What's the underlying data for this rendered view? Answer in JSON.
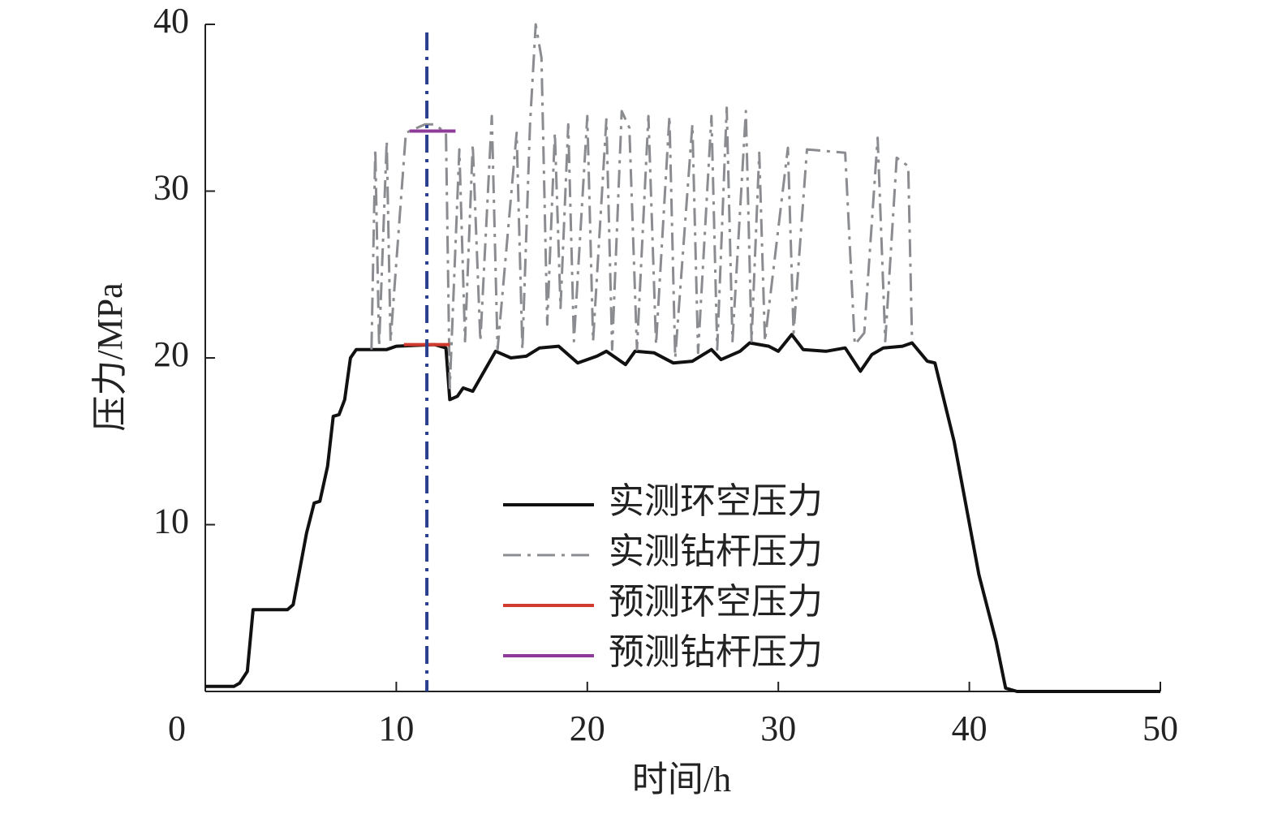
{
  "chart_data": {
    "type": "line",
    "xlabel": "时间/h",
    "ylabel": "压力/MPa",
    "xlim": [
      0,
      50
    ],
    "ylim": [
      0,
      40
    ],
    "xticks": [
      0,
      10,
      20,
      30,
      40,
      50
    ],
    "yticks": [
      10,
      20,
      30,
      40
    ],
    "vlines": [
      {
        "x": 11.6,
        "color": "#2b3f8f"
      }
    ],
    "series": [
      {
        "name": "实测环空压力",
        "color": "#111111",
        "dash": "solid",
        "x": [
          0,
          1.5,
          1.8,
          2.2,
          2.5,
          4.3,
          4.6,
          5.3,
          5.7,
          6.0,
          6.4,
          6.7,
          7.0,
          7.3,
          7.6,
          7.9,
          9.5,
          10.0,
          12.0,
          12.6,
          12.8,
          13.2,
          13.5,
          14.0,
          14.5,
          15.2,
          16.0,
          16.8,
          17.5,
          18.5,
          19.5,
          20.5,
          21.0,
          22.0,
          22.5,
          23.5,
          24.5,
          25.5,
          26.5,
          27.0,
          28.0,
          28.5,
          29.5,
          30.0,
          30.7,
          31.3,
          32.5,
          33.5,
          34.3,
          34.9,
          35.5,
          36.5,
          37.0,
          37.8,
          38.2,
          39.2,
          40.5,
          41.4,
          41.9,
          42.5,
          50
        ],
        "values": [
          0.3,
          0.3,
          0.5,
          1.2,
          4.9,
          4.9,
          5.2,
          9.5,
          11.3,
          11.4,
          13.5,
          16.5,
          16.6,
          17.5,
          20.0,
          20.5,
          20.5,
          20.7,
          20.8,
          20.6,
          17.5,
          17.7,
          18.2,
          18.0,
          19.0,
          20.4,
          20.0,
          20.1,
          20.6,
          20.7,
          19.7,
          20.1,
          20.4,
          19.6,
          20.4,
          20.3,
          19.7,
          19.8,
          20.5,
          19.9,
          20.4,
          20.9,
          20.7,
          20.4,
          21.4,
          20.5,
          20.4,
          20.6,
          19.2,
          20.2,
          20.6,
          20.7,
          20.9,
          19.8,
          19.7,
          15,
          7,
          3,
          0.2,
          0,
          0
        ]
      },
      {
        "name": "实测钻杆压力",
        "color": "#8a8c90",
        "dash": "dashdot",
        "x": [
          8.7,
          8.9,
          9.1,
          9.5,
          9.7,
          10.5,
          11.5,
          12.0,
          12.6,
          12.8,
          13.3,
          13.6,
          14.0,
          14.4,
          15.0,
          15.3,
          16.3,
          16.6,
          17.0,
          17.3,
          17.6,
          17.9,
          18.3,
          18.6,
          19.0,
          19.3,
          20.0,
          20.3,
          21.0,
          21.3,
          21.8,
          22.2,
          22.6,
          23.2,
          23.6,
          24.3,
          24.6,
          25.5,
          25.8,
          26.5,
          26.8,
          27.3,
          27.6,
          28.3,
          28.6,
          29.0,
          29.3,
          30.5,
          30.8,
          31.5,
          33.5,
          34.0,
          34.5,
          35.2,
          35.6,
          36.2,
          36.8,
          37.0
        ],
        "values": [
          20.5,
          32.5,
          20.7,
          33,
          21,
          33.5,
          34,
          34,
          33.5,
          18.2,
          32.5,
          21,
          32.8,
          21,
          34.5,
          20.5,
          33.5,
          20.5,
          34,
          40,
          38,
          22,
          33.5,
          23,
          34,
          21,
          34.5,
          21,
          34.3,
          20.5,
          34.8,
          33.8,
          20.5,
          34.5,
          20.8,
          34.5,
          20,
          34,
          20.3,
          34.5,
          20.5,
          35,
          21,
          34.8,
          21,
          32.3,
          21,
          32.6,
          21.5,
          32.5,
          32.3,
          20.8,
          21.5,
          33.2,
          21,
          32,
          31.5,
          21
        ]
      },
      {
        "name": "预测环空压力",
        "color": "#d03a2f",
        "dash": "solid",
        "x": [
          10.4,
          12.8
        ],
        "values": [
          20.8,
          20.8
        ]
      },
      {
        "name": "预测钻杆压力",
        "color": "#8e3b9a",
        "dash": "solid",
        "x": [
          10.7,
          13.1
        ],
        "values": [
          33.6,
          33.6
        ]
      }
    ]
  }
}
